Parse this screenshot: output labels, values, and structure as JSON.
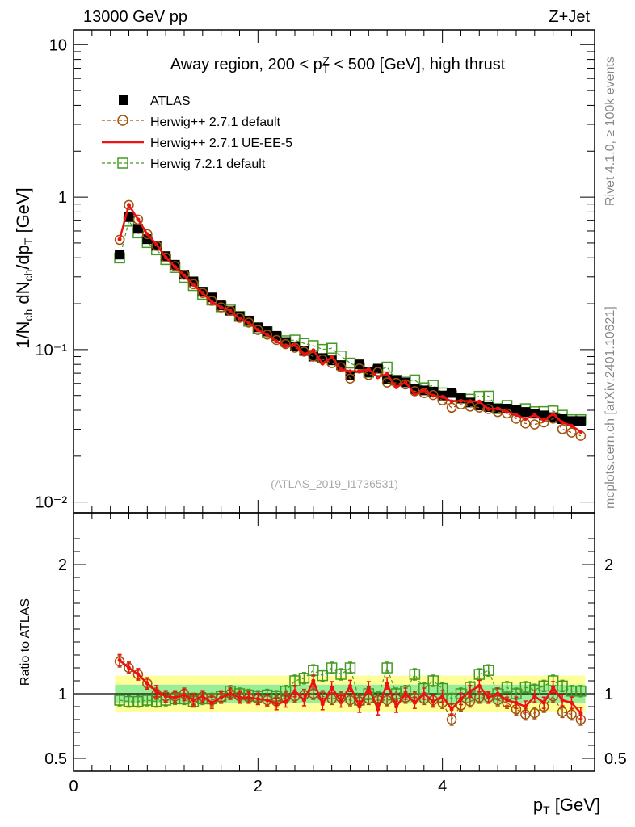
{
  "header": {
    "energy": "13000 GeV pp",
    "process": "Z+Jet"
  },
  "side": {
    "rivet": "Rivet 4.1.0, ≥ 100k events",
    "site": "mcplots.cern.ch [arXiv:2401.10621]"
  },
  "chart_data": {
    "type": "scatter",
    "title": "Away region, 200 < p_T^Z < 500 [GeV], high thrust",
    "analysis": "(ATLAS_2019_I1736531)",
    "xlabel": "p_T [GeV]",
    "ylabel": "1/N_ch dN_ch/dp_T [GeV]",
    "ratio_ylabel": "Ratio to ATLAS",
    "xlim": [
      0,
      5.65
    ],
    "ylim": [
      0.0085,
      12.5
    ],
    "yscale": "log",
    "ratio_ylim": [
      0.4,
      2.4
    ],
    "x_ticks": [
      "0",
      "2",
      "4"
    ],
    "y_ticks": [
      "10",
      "1",
      "10⁻¹",
      "10⁻²"
    ],
    "ratio_ticks": [
      "2",
      "1",
      "0.5"
    ],
    "legend_position": "top-left",
    "x": [
      0.5,
      0.6,
      0.7,
      0.8,
      0.9,
      1.0,
      1.1,
      1.2,
      1.3,
      1.4,
      1.5,
      1.6,
      1.7,
      1.8,
      1.9,
      2.0,
      2.1,
      2.2,
      2.3,
      2.4,
      2.5,
      2.6,
      2.7,
      2.8,
      2.9,
      3.0,
      3.1,
      3.2,
      3.3,
      3.4,
      3.5,
      3.6,
      3.7,
      3.8,
      3.9,
      4.0,
      4.1,
      4.2,
      4.3,
      4.4,
      4.5,
      4.6,
      4.7,
      4.8,
      4.9,
      5.0,
      5.1,
      5.2,
      5.3,
      5.4,
      5.5
    ],
    "series": [
      {
        "name": "ATLAS",
        "color": "#000000",
        "style": "data",
        "values": [
          0.42,
          0.74,
          0.62,
          0.53,
          0.48,
          0.41,
          0.36,
          0.31,
          0.28,
          0.24,
          0.22,
          0.195,
          0.18,
          0.165,
          0.155,
          0.14,
          0.132,
          0.123,
          0.112,
          0.105,
          0.098,
          0.09,
          0.088,
          0.085,
          0.079,
          0.068,
          0.08,
          0.071,
          0.075,
          0.064,
          0.063,
          0.061,
          0.055,
          0.054,
          0.053,
          0.05,
          0.052,
          0.048,
          0.045,
          0.043,
          0.042,
          0.041,
          0.041,
          0.04,
          0.039,
          0.038,
          0.037,
          0.036,
          0.035,
          0.034,
          0.034
        ]
      },
      {
        "name": "Herwig++ 2.7.1 default",
        "color": "#a0520a",
        "style": "dashed-circle",
        "ratio": [
          1.25,
          1.2,
          1.15,
          1.08,
          1.0,
          0.98,
          0.98,
          1.0,
          0.96,
          0.98,
          0.95,
          0.97,
          1.0,
          0.98,
          0.97,
          0.96,
          0.95,
          0.94,
          0.97,
          0.98,
          0.99,
          1.0,
          0.98,
          0.96,
          0.97,
          0.95,
          0.94,
          0.96,
          0.95,
          0.95,
          0.96,
          0.97,
          0.97,
          0.96,
          0.95,
          0.93,
          0.8,
          0.91,
          0.94,
          0.97,
          0.97,
          0.95,
          0.93,
          0.88,
          0.84,
          0.85,
          0.9,
          0.98,
          0.86,
          0.84,
          0.8
        ]
      },
      {
        "name": "Herwig++ 2.7.1 UE-EE-5",
        "color": "#ee1111",
        "style": "solid-line",
        "ratio": [
          1.26,
          1.2,
          1.15,
          1.08,
          1.02,
          0.98,
          0.97,
          0.99,
          0.95,
          0.98,
          0.93,
          0.97,
          1.0,
          0.97,
          0.97,
          0.96,
          0.95,
          0.92,
          0.94,
          1.02,
          0.95,
          1.1,
          0.92,
          1.05,
          0.94,
          1.06,
          0.9,
          1.05,
          0.88,
          1.08,
          0.9,
          1.0,
          0.93,
          1.0,
          0.94,
          0.98,
          0.88,
          0.96,
          1.02,
          1.06,
          0.97,
          1.0,
          0.95,
          0.93,
          0.9,
          0.98,
          0.93,
          1.05,
          0.95,
          0.93,
          0.85
        ]
      },
      {
        "name": "Herwig 7.2.1 default",
        "color": "#449a22",
        "style": "dashed-square",
        "ratio": [
          0.95,
          0.94,
          0.94,
          0.95,
          0.94,
          0.95,
          0.96,
          0.96,
          0.94,
          0.96,
          0.96,
          0.98,
          1.02,
          1.0,
          0.99,
          0.98,
          0.99,
          0.98,
          1.02,
          1.1,
          1.12,
          1.18,
          1.14,
          1.2,
          1.15,
          1.2,
          0.95,
          1.0,
          0.97,
          1.2,
          1.0,
          1.02,
          1.15,
          1.04,
          1.1,
          1.04,
          0.96,
          1.0,
          1.05,
          1.15,
          1.18,
          1.0,
          1.05,
          1.0,
          1.05,
          1.03,
          1.06,
          1.1,
          1.06,
          1.02,
          1.02
        ]
      }
    ],
    "bands": {
      "yellow": [
        0.86,
        1.14
      ],
      "green": [
        0.93,
        1.07
      ]
    }
  }
}
